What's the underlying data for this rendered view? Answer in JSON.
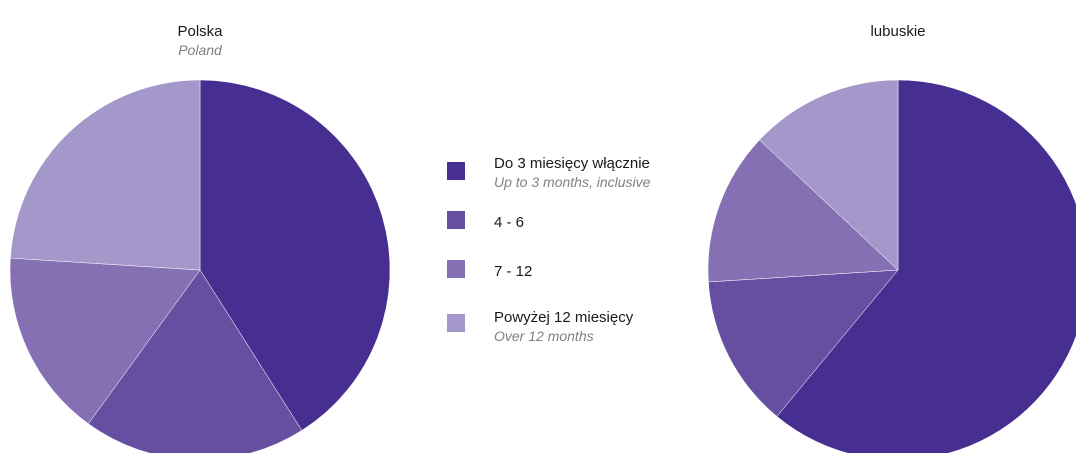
{
  "chart_data": [
    {
      "type": "pie",
      "title": "Polska",
      "subtitle": "Poland",
      "labels": [
        "Do 3 miesięcy włącznie",
        "4 - 6",
        "7 - 12",
        "Powyżej 12 miesięcy"
      ],
      "values": [
        41,
        19,
        16,
        24
      ]
    },
    {
      "type": "pie",
      "title": "lubuskie",
      "subtitle": "",
      "labels": [
        "Do 3 miesięcy włącznie",
        "4 - 6",
        "7 - 12",
        "Powyżej 12 miesięcy"
      ],
      "values": [
        61,
        13,
        13,
        13
      ]
    }
  ],
  "legend": {
    "placement": "center",
    "items": [
      {
        "label": "Do 3 miesięcy włącznie",
        "sublabel": "Up to 3 months, inclusive",
        "color": "#472f92"
      },
      {
        "label": "4 - 6",
        "sublabel": "",
        "color": "#664fa0"
      },
      {
        "label": "7 - 12",
        "sublabel": "",
        "color": "#8470b2"
      },
      {
        "label": "Powyżej 12 miesięcy",
        "sublabel": "Over 12 months",
        "color": "#a497c9"
      }
    ]
  }
}
